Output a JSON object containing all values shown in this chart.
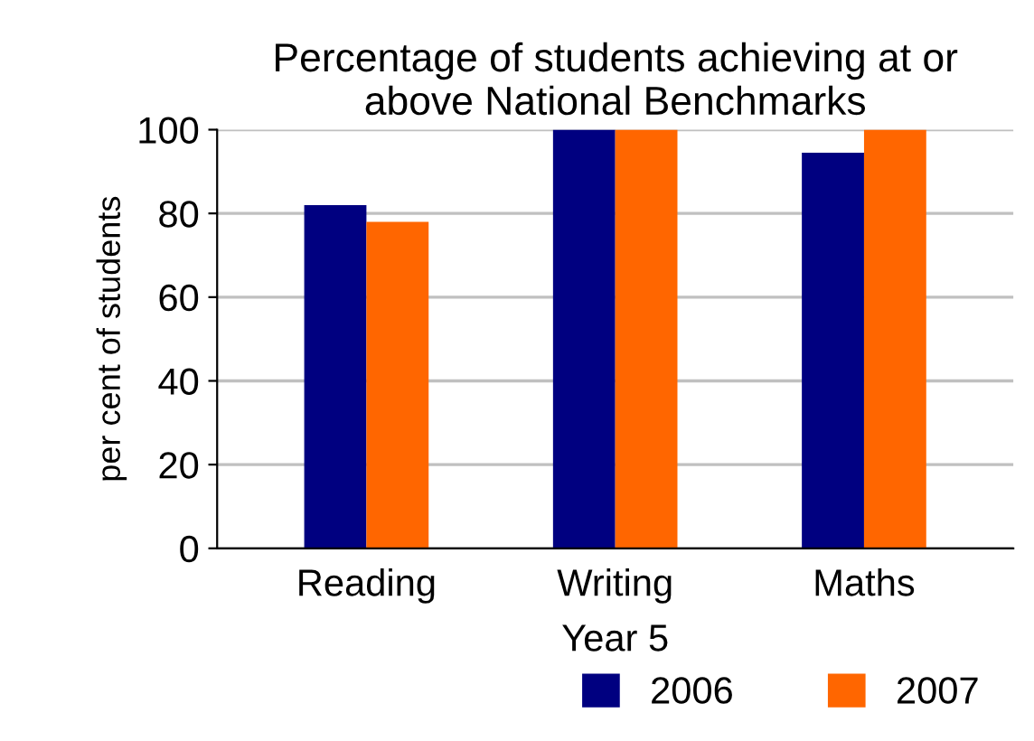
{
  "chart_data": {
    "type": "bar",
    "title": "Percentage of students achieving at or\nabove National Benchmarks",
    "xlabel": "Year 5",
    "ylabel": "per cent of students",
    "categories": [
      "Reading",
      "Writing",
      "Maths"
    ],
    "series": [
      {
        "name": "2006",
        "color": "#000080",
        "values": [
          82,
          100,
          94.5
        ]
      },
      {
        "name": "2007",
        "color": "#ff6600",
        "values": [
          78,
          100,
          100
        ]
      }
    ],
    "ylim": [
      0,
      100
    ],
    "yticks": [
      0,
      20,
      40,
      60,
      80,
      100
    ],
    "grid": "y",
    "legend": "bottom"
  }
}
